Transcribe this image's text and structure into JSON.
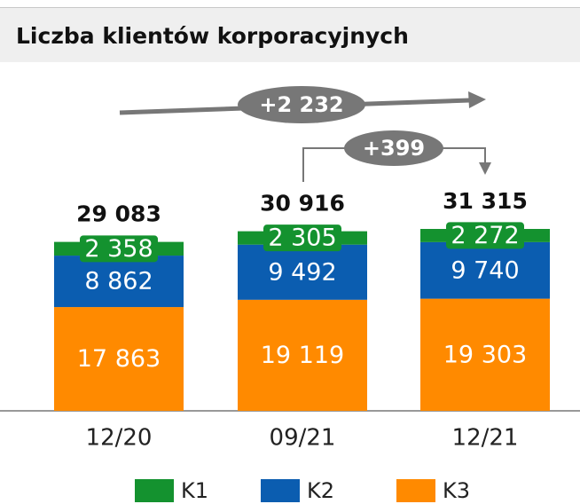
{
  "chart_data": {
    "type": "stacked_bar",
    "title": "Liczba klientów korporacyjnych",
    "categories": [
      "12/20",
      "09/21",
      "12/21"
    ],
    "series": [
      {
        "name": "K1",
        "color": "#14922f",
        "values": [
          2358,
          2305,
          2272
        ],
        "value_labels": [
          "2 358",
          "2 305",
          "2 272"
        ]
      },
      {
        "name": "K2",
        "color": "#0b5db0",
        "values": [
          8862,
          9492,
          9740
        ],
        "value_labels": [
          "8 862",
          "9 492",
          "9 740"
        ]
      },
      {
        "name": "K3",
        "color": "#ff8a00",
        "values": [
          17863,
          19119,
          19303
        ],
        "value_labels": [
          "17 863",
          "19 119",
          "19 303"
        ]
      }
    ],
    "totals": [
      29083,
      30916,
      31315
    ],
    "total_labels": [
      "29 083",
      "30 916",
      "31 315"
    ],
    "annotations": [
      "+2 232",
      "+399"
    ]
  }
}
